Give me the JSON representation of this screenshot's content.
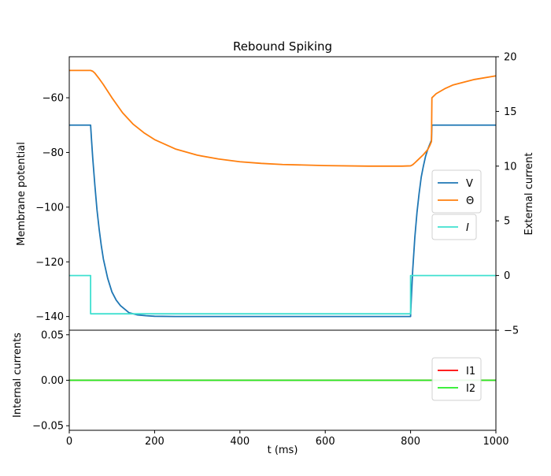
{
  "chart_data": [
    {
      "type": "line",
      "title": "Rebound Spiking",
      "ylabel": "Membrane potential",
      "y2label": "External current",
      "xlim": [
        0,
        1000
      ],
      "ylim": [
        -145,
        -45
      ],
      "y2lim": [
        -5,
        20
      ],
      "yticks": [
        -140,
        -120,
        -100,
        -80,
        -60
      ],
      "y2ticks": [
        -5,
        0,
        5,
        10,
        15,
        20
      ],
      "series": [
        {
          "name": "V",
          "axis": "left",
          "color": "#1f77b4",
          "x": [
            0,
            50,
            52,
            55,
            60,
            65,
            70,
            75,
            80,
            90,
            100,
            110,
            120,
            140,
            160,
            180,
            200,
            250,
            300,
            400,
            500,
            600,
            700,
            800,
            801,
            805,
            810,
            815,
            820,
            825,
            830,
            835,
            840,
            845,
            849,
            850,
            860,
            900,
            1000
          ],
          "y": [
            -70,
            -70,
            -75,
            -82,
            -92,
            -101,
            -108,
            -114,
            -119,
            -126,
            -131,
            -134,
            -136,
            -138.6,
            -139.4,
            -139.7,
            -139.9,
            -140,
            -140,
            -140,
            -140,
            -140,
            -140,
            -140,
            -136,
            -123,
            -111,
            -102,
            -95,
            -89,
            -85,
            -81.5,
            -79,
            -77,
            -75.5,
            -70,
            -70,
            -70,
            -70
          ]
        },
        {
          "name": "Θ",
          "axis": "left",
          "color": "#ff7f0e",
          "x": [
            0,
            50,
            55,
            60,
            70,
            80,
            100,
            125,
            150,
            175,
            200,
            250,
            300,
            350,
            400,
            450,
            500,
            600,
            700,
            780,
            800,
            805,
            810,
            820,
            830,
            840,
            845,
            849,
            850,
            860,
            880,
            900,
            950,
            1000
          ],
          "y": [
            -50,
            -50,
            -50.3,
            -51,
            -53,
            -55.2,
            -60,
            -65.5,
            -69.7,
            -72.8,
            -75.3,
            -78.8,
            -81,
            -82.4,
            -83.4,
            -84,
            -84.4,
            -84.8,
            -85,
            -85,
            -84.9,
            -84.5,
            -83.8,
            -82.3,
            -80.8,
            -79,
            -77.5,
            -76,
            -60,
            -58.5,
            -56.7,
            -55.3,
            -53.3,
            -52
          ]
        },
        {
          "name": "I",
          "axis": "right",
          "color": "#40e0d0",
          "x": [
            0,
            50,
            50.01,
            800,
            800.01,
            1000
          ],
          "y": [
            0,
            0,
            -3.5,
            -3.5,
            0,
            0
          ]
        }
      ],
      "legend": {
        "placement": "right"
      },
      "grid": false
    },
    {
      "type": "line",
      "title": "",
      "xlabel": "t (ms)",
      "ylabel": "Internal currents",
      "xlim": [
        0,
        1000
      ],
      "ylim": [
        -0.055,
        0.055
      ],
      "xticks": [
        0,
        200,
        400,
        600,
        800,
        1000
      ],
      "yticks": [
        "-0.05",
        "0.00",
        "0.05"
      ],
      "series": [
        {
          "name": "I1",
          "color": "#ff0000",
          "x": [
            0,
            1000
          ],
          "y": [
            0,
            0
          ]
        },
        {
          "name": "I2",
          "color": "#22ee22",
          "x": [
            0,
            1000
          ],
          "y": [
            0,
            0
          ]
        }
      ],
      "legend": {
        "placement": "right"
      },
      "grid": false
    }
  ]
}
